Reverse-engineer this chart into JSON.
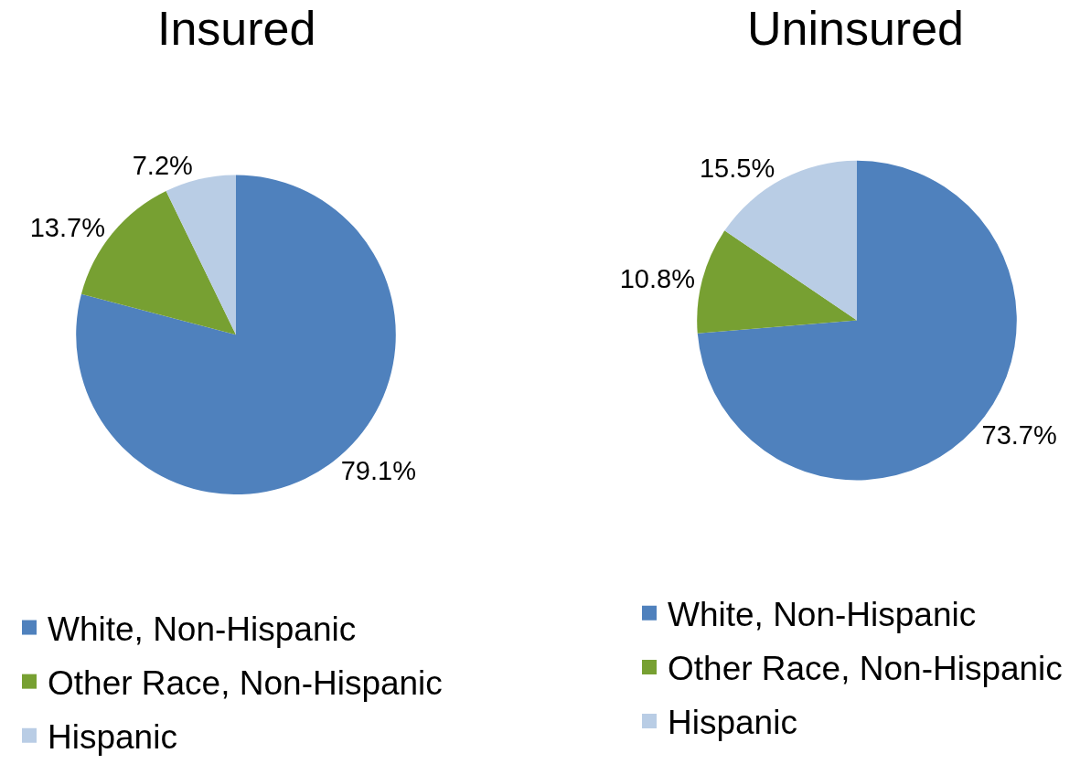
{
  "chart_data": [
    {
      "type": "pie",
      "title": "Insured",
      "categories": [
        "White, Non-Hispanic",
        "Other Race, Non-Hispanic",
        "Hispanic"
      ],
      "values": [
        79.1,
        13.7,
        7.2
      ],
      "colors": [
        "#4f81bd",
        "#77a032",
        "#b9cde5"
      ],
      "value_labels": [
        "79.1%",
        "13.7%",
        "7.2%"
      ],
      "legend": "bottom"
    },
    {
      "type": "pie",
      "title": "Uninsured",
      "categories": [
        "White, Non-Hispanic",
        "Other Race, Non-Hispanic",
        "Hispanic"
      ],
      "values": [
        73.7,
        10.8,
        15.5
      ],
      "colors": [
        "#4f81bd",
        "#77a032",
        "#b9cde5"
      ],
      "value_labels": [
        "73.7%",
        "10.8%",
        "15.5%"
      ],
      "legend": "bottom"
    }
  ]
}
